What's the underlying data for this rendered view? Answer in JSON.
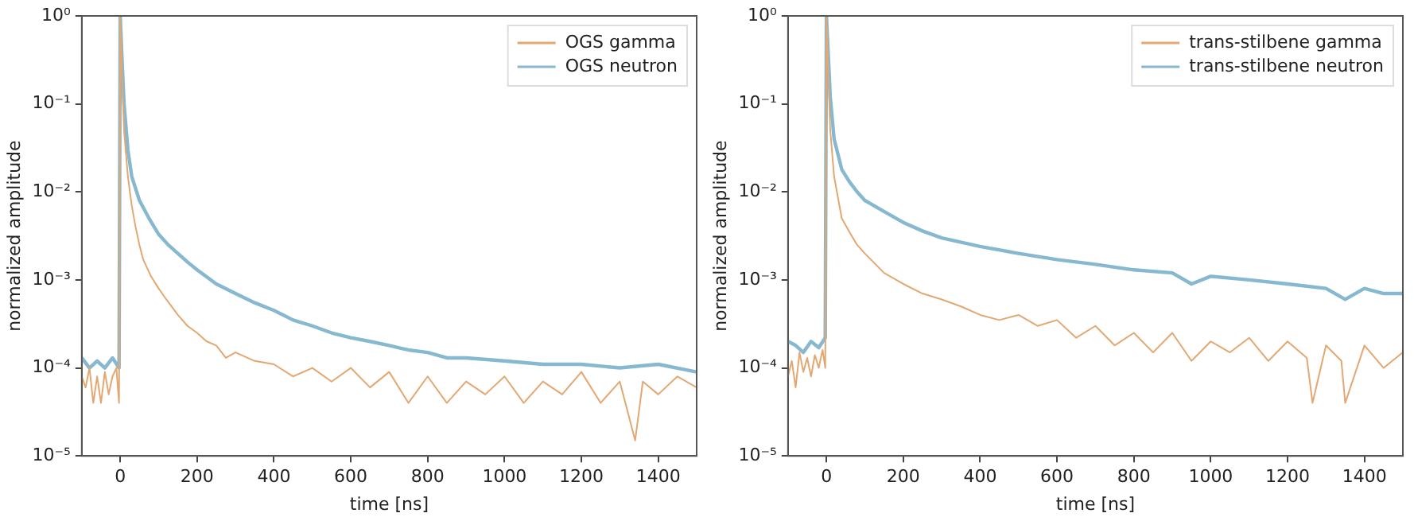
{
  "chart_data": [
    {
      "type": "line",
      "xlabel": "time [ns]",
      "ylabel": "normalized amplitude",
      "log": "y",
      "grid": false,
      "legend": "top right",
      "xlim": [
        -100,
        1500
      ],
      "ylim": [
        1e-05,
        1
      ],
      "xticks": [
        0,
        200,
        400,
        600,
        800,
        1000,
        1200,
        1400
      ],
      "yticks": [
        {
          "value": 1e-05,
          "label": "10⁻⁵"
        },
        {
          "value": 0.0001,
          "label": "10⁻⁴"
        },
        {
          "value": 0.001,
          "label": "10⁻³"
        },
        {
          "value": 0.01,
          "label": "10⁻²"
        },
        {
          "value": 0.1,
          "label": "10⁻¹"
        },
        {
          "value": 1,
          "label": "10⁰"
        }
      ],
      "series": [
        {
          "name": "OGS gamma",
          "color": "#e3a872",
          "x": [
            -100,
            -90,
            -80,
            -70,
            -60,
            -50,
            -40,
            -30,
            -20,
            -10,
            -3,
            0,
            5,
            10,
            20,
            30,
            40,
            50,
            60,
            80,
            100,
            120,
            150,
            175,
            200,
            225,
            250,
            275,
            300,
            350,
            400,
            450,
            500,
            550,
            600,
            650,
            700,
            750,
            800,
            850,
            900,
            950,
            1000,
            1050,
            1100,
            1150,
            1200,
            1250,
            1300,
            1340,
            1360,
            1400,
            1450,
            1500
          ],
          "values": [
            8e-05,
            6e-05,
            0.0001,
            4e-05,
            8e-05,
            4e-05,
            9e-05,
            5e-05,
            8e-05,
            0.0001,
            4e-05,
            1,
            0.2,
            0.05,
            0.015,
            0.007,
            0.004,
            0.0025,
            0.0017,
            0.0011,
            0.0008,
            0.0006,
            0.0004,
            0.0003,
            0.00025,
            0.0002,
            0.00018,
            0.00013,
            0.00015,
            0.00012,
            0.00011,
            8e-05,
            0.0001,
            7e-05,
            0.0001,
            6e-05,
            9e-05,
            4e-05,
            8e-05,
            4e-05,
            7e-05,
            5e-05,
            8e-05,
            4e-05,
            7e-05,
            5e-05,
            9e-05,
            4e-05,
            7e-05,
            1.5e-05,
            7e-05,
            5e-05,
            8e-05,
            6e-05
          ]
        },
        {
          "name": "OGS neutron",
          "color": "#86b8cf",
          "x": [
            -100,
            -80,
            -60,
            -40,
            -20,
            -3,
            0,
            5,
            10,
            20,
            30,
            50,
            75,
            100,
            125,
            150,
            175,
            200,
            250,
            300,
            350,
            400,
            450,
            500,
            550,
            600,
            650,
            700,
            750,
            800,
            850,
            900,
            1000,
            1100,
            1200,
            1300,
            1400,
            1500
          ],
          "values": [
            0.00013,
            0.0001,
            0.00012,
            0.0001,
            0.00013,
            0.0001,
            1,
            0.3,
            0.1,
            0.03,
            0.015,
            0.008,
            0.005,
            0.0033,
            0.0025,
            0.002,
            0.0016,
            0.0013,
            0.0009,
            0.0007,
            0.00055,
            0.00045,
            0.00035,
            0.0003,
            0.00025,
            0.00022,
            0.0002,
            0.00018,
            0.00016,
            0.00015,
            0.00013,
            0.00013,
            0.00012,
            0.00011,
            0.00011,
            0.0001,
            0.00011,
            9e-05
          ]
        }
      ]
    },
    {
      "type": "line",
      "xlabel": "time [ns]",
      "ylabel": "normalized amplitude",
      "log": "y",
      "grid": false,
      "legend": "top right",
      "xlim": [
        -100,
        1500
      ],
      "ylim": [
        1e-05,
        1
      ],
      "xticks": [
        0,
        200,
        400,
        600,
        800,
        1000,
        1200,
        1400
      ],
      "yticks": [
        {
          "value": 1e-05,
          "label": "10⁻⁵"
        },
        {
          "value": 0.0001,
          "label": "10⁻⁴"
        },
        {
          "value": 0.001,
          "label": "10⁻³"
        },
        {
          "value": 0.01,
          "label": "10⁻²"
        },
        {
          "value": 0.1,
          "label": "10⁻¹"
        },
        {
          "value": 1,
          "label": "10⁰"
        }
      ],
      "series": [
        {
          "name": "trans-stilbene gamma",
          "color": "#e3a872",
          "x": [
            -100,
            -90,
            -80,
            -70,
            -60,
            -50,
            -40,
            -30,
            -20,
            -10,
            -3,
            0,
            5,
            10,
            20,
            40,
            60,
            80,
            100,
            150,
            200,
            250,
            300,
            350,
            400,
            450,
            500,
            550,
            600,
            650,
            700,
            750,
            800,
            850,
            900,
            950,
            1000,
            1050,
            1100,
            1150,
            1200,
            1250,
            1265,
            1300,
            1340,
            1350,
            1400,
            1450,
            1500
          ],
          "values": [
            8e-05,
            0.00012,
            6e-05,
            0.00015,
            9e-05,
            0.00013,
            8e-05,
            0.00014,
            0.0001,
            0.00016,
            0.0001,
            1,
            0.2,
            0.05,
            0.015,
            0.005,
            0.0035,
            0.0025,
            0.002,
            0.0012,
            0.0009,
            0.0007,
            0.0006,
            0.0005,
            0.0004,
            0.00035,
            0.0004,
            0.0003,
            0.00035,
            0.00022,
            0.0003,
            0.00018,
            0.00025,
            0.00015,
            0.00025,
            0.00012,
            0.0002,
            0.00015,
            0.00022,
            0.00012,
            0.0002,
            0.00013,
            4e-05,
            0.00018,
            0.00012,
            4e-05,
            0.00018,
            0.0001,
            0.00015
          ]
        },
        {
          "name": "trans-stilbene neutron",
          "color": "#86b8cf",
          "x": [
            -100,
            -80,
            -60,
            -40,
            -20,
            -3,
            0,
            5,
            10,
            20,
            40,
            60,
            80,
            100,
            150,
            200,
            250,
            300,
            400,
            500,
            600,
            700,
            800,
            900,
            950,
            1000,
            1100,
            1200,
            1300,
            1350,
            1400,
            1450,
            1500
          ],
          "values": [
            0.0002,
            0.00018,
            0.00015,
            0.0002,
            0.00017,
            0.00022,
            1,
            0.35,
            0.12,
            0.04,
            0.018,
            0.013,
            0.01,
            0.008,
            0.006,
            0.0045,
            0.0036,
            0.003,
            0.0024,
            0.002,
            0.0017,
            0.0015,
            0.0013,
            0.0012,
            0.0009,
            0.0011,
            0.001,
            0.0009,
            0.0008,
            0.0006,
            0.0008,
            0.0007,
            0.0007
          ]
        }
      ]
    }
  ]
}
